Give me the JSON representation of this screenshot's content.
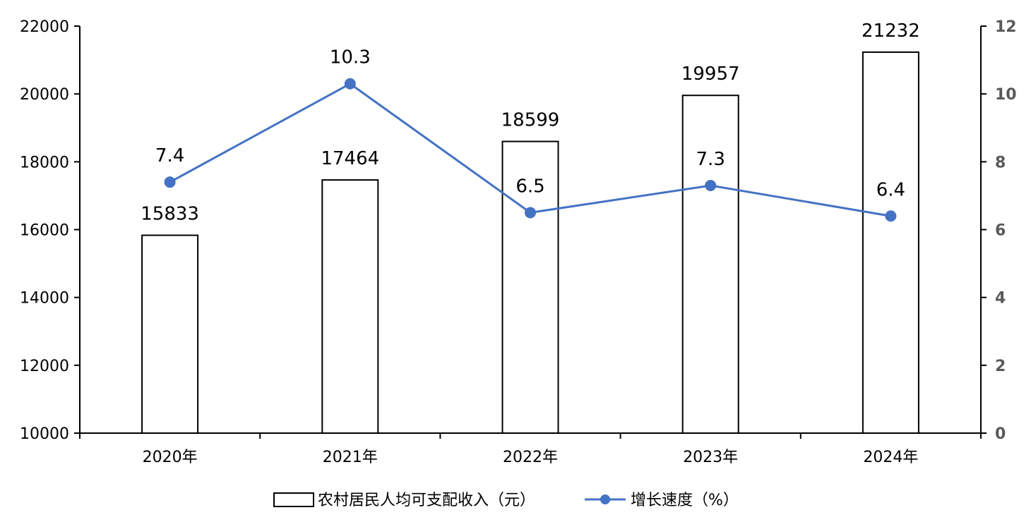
{
  "chart_data": {
    "type": "bar",
    "categories": [
      "2020年",
      "2021年",
      "2022年",
      "2023年",
      "2024年"
    ],
    "series": [
      {
        "name": "农村居民人均可支配收入（元）",
        "type": "bar",
        "axis": "left",
        "values": [
          15833,
          17464,
          18599,
          19957,
          21232
        ],
        "labels": [
          "15833",
          "17464",
          "18599",
          "19957",
          "21232"
        ]
      },
      {
        "name": "增长速度（%）",
        "type": "line",
        "axis": "right",
        "values": [
          7.4,
          10.3,
          6.5,
          7.3,
          6.4
        ],
        "labels": [
          "7.4",
          "10.3",
          "6.5",
          "7.3",
          "6.4"
        ]
      }
    ],
    "y_left": {
      "min": 10000,
      "max": 22000,
      "ticks": [
        "10000",
        "12000",
        "14000",
        "16000",
        "18000",
        "20000",
        "22000"
      ]
    },
    "y_right": {
      "min": 0,
      "max": 12,
      "ticks": [
        "0",
        "2",
        "4",
        "6",
        "8",
        "10",
        "12"
      ]
    },
    "legend_position": "bottom",
    "grid": false,
    "colors": {
      "bar_fill": "#ffffff",
      "bar_stroke": "#000000",
      "line": "#4472C4",
      "axis": "#000000",
      "right_tick_text": "#595959"
    }
  }
}
